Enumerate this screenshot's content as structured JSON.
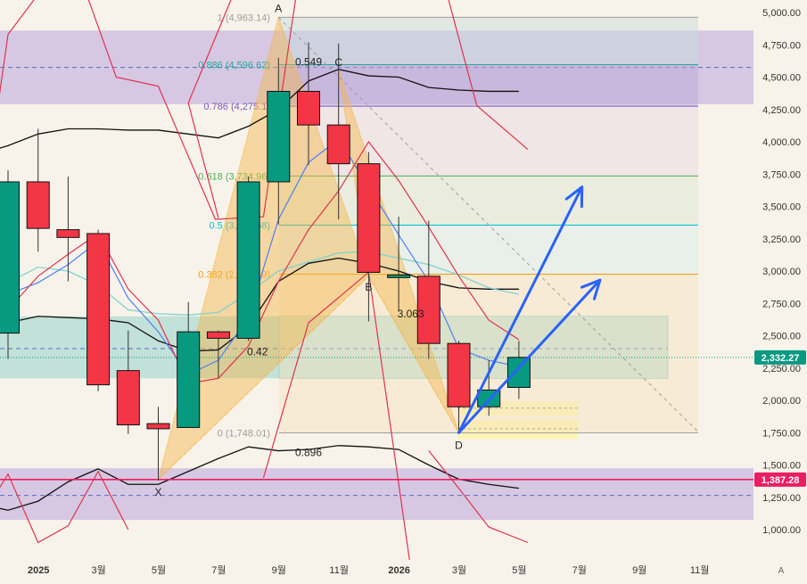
{
  "chart_data": {
    "type": "candlestick",
    "period": "monthly",
    "x_tick_labels": [
      "11월",
      "2025",
      "3월",
      "5월",
      "7월",
      "9월",
      "11월",
      "2026",
      "3월",
      "5월",
      "7월",
      "9월",
      "11월"
    ],
    "y_ticks": [
      1000,
      1250,
      1500,
      1750,
      2000,
      2250,
      2500,
      2750,
      3000,
      3250,
      3500,
      3750,
      4000,
      4250,
      4500,
      4750,
      5000
    ],
    "y_tick_labels": [
      "1,000.00",
      "1,250.00",
      "1,500.00",
      "1,750.00",
      "2,000.00",
      "2,250.00",
      "2,500.00",
      "2,750.00",
      "3,000.00",
      "3,250.00",
      "3,500.00",
      "3,750.00",
      "4,000.00",
      "4,250.00",
      "4,500.00",
      "4,750.00",
      "5,000.00"
    ],
    "ylim": [
      880,
      5100
    ],
    "candles": [
      {
        "x": 0,
        "open": 2520,
        "high": 3780,
        "low": 2320,
        "close": 3690
      },
      {
        "x": 1,
        "open": 3690,
        "high": 4100,
        "low": 3150,
        "close": 3330
      },
      {
        "x": 2,
        "open": 3320,
        "high": 3730,
        "low": 2920,
        "close": 3260
      },
      {
        "x": 3,
        "open": 3290,
        "high": 3320,
        "low": 2070,
        "close": 2120
      },
      {
        "x": 4,
        "open": 2230,
        "high": 2540,
        "low": 1740,
        "close": 1810
      },
      {
        "x": 5,
        "open": 1820,
        "high": 1950,
        "low": 1380,
        "close": 1780
      },
      {
        "x": 6,
        "open": 1790,
        "high": 2760,
        "low": 1790,
        "close": 2530
      },
      {
        "x": 7,
        "open": 2530,
        "high": 2540,
        "low": 2170,
        "close": 2480
      },
      {
        "x": 8,
        "open": 2480,
        "high": 3730,
        "low": 2460,
        "close": 3690
      },
      {
        "x": 9,
        "open": 3690,
        "high": 4650,
        "low": 3360,
        "close": 4390
      },
      {
        "x": 10,
        "open": 4390,
        "high": 4770,
        "low": 3820,
        "close": 4130
      },
      {
        "x": 11,
        "open": 4130,
        "high": 4760,
        "low": 3400,
        "close": 3830
      },
      {
        "x": 12,
        "open": 3830,
        "high": 3920,
        "low": 2610,
        "close": 2990
      },
      {
        "x": 13,
        "open": 2970,
        "high": 3420,
        "low": 2690,
        "close": 2970
      },
      {
        "x": 14,
        "open": 2960,
        "high": 3390,
        "low": 2320,
        "close": 2440
      },
      {
        "x": 15,
        "open": 2440,
        "high": 2460,
        "low": 1760,
        "close": 1950
      },
      {
        "x": 16,
        "open": 1950,
        "high": 2310,
        "low": 1880,
        "close": 2080
      },
      {
        "x": 17,
        "open": 2100,
        "high": 2460,
        "low": 2010,
        "close": 2332.27
      }
    ],
    "fib_levels": [
      {
        "ratio": "1",
        "price": 4963.14,
        "label": "1 (4,963.14)",
        "color": "#9e9e9e"
      },
      {
        "ratio": "0.886",
        "price": 4596.62,
        "label": "0.886 (4,596.62)",
        "color": "#26a69a"
      },
      {
        "ratio": "0.786",
        "price": 4275.1,
        "label": "0.786 (4,275.1)",
        "color": "#7e57c2"
      },
      {
        "ratio": "0.618",
        "price": 3734.96,
        "label": "0.618 (3,734.96)",
        "color": "#4caf50"
      },
      {
        "ratio": "0.5",
        "price": 3355.58,
        "label": "0.5 (3,355.58)",
        "color": "#00bcd4"
      },
      {
        "ratio": "0.382",
        "price": 2976.19,
        "label": "0.382 (2,976.19)",
        "color": "#ff9800"
      },
      {
        "ratio": "0",
        "price": 1748.01,
        "label": "0 (1,748.01)",
        "color": "#9e9e9e"
      }
    ],
    "pattern_points": [
      {
        "label": "X",
        "x": 5,
        "price": 1387
      },
      {
        "label": "A",
        "x": 9,
        "price": 4963
      },
      {
        "label": "B",
        "x": 12,
        "price": 2960
      },
      {
        "label": "C",
        "x": 11,
        "price": 4560
      },
      {
        "label": "D",
        "x": 15,
        "price": 1748
      }
    ],
    "pattern_ratios": [
      {
        "text": "0.42",
        "x": 8.3,
        "price": 2350
      },
      {
        "text": "0.549",
        "x": 10.0,
        "price": 4590
      },
      {
        "text": "3.063",
        "x": 13.4,
        "price": 2640
      },
      {
        "text": "0.896",
        "x": 10.0,
        "price": 1570
      }
    ],
    "zones": [
      {
        "name": "upper-purple",
        "from": 4290,
        "to": 4860,
        "color": "#b39ddb"
      },
      {
        "name": "lower-purple",
        "from": 1075,
        "to": 1475,
        "color": "#b39ddb"
      },
      {
        "name": "teal-box",
        "from": 2170,
        "to": 2650,
        "color": "#80cbc4"
      }
    ],
    "horizontal_lines": [
      {
        "price": 1387.28,
        "label": "1,387.28",
        "color": "#e91e63"
      },
      {
        "price": 2332.27,
        "label": "2,332.27",
        "color": "#089981"
      }
    ],
    "arrows": [
      {
        "from": {
          "x": 15,
          "price": 1750
        },
        "to": {
          "x": 19.1,
          "price": 3650
        }
      },
      {
        "from": {
          "x": 15,
          "price": 1750
        },
        "to": {
          "x": 19.7,
          "price": 2930
        }
      }
    ],
    "bollinger_upper": [
      {
        "x": -1,
        "price": 3200
      },
      {
        "x": 0,
        "price": 4830
      },
      {
        "x": 1,
        "price": 5140
      },
      {
        "x": 2.6,
        "price": 5150
      },
      {
        "x": 3.6,
        "price": 4500
      },
      {
        "x": 5.0,
        "price": 4430
      },
      {
        "x": 6.9,
        "price": 3400
      },
      {
        "x": 8.5,
        "price": 3420
      },
      {
        "x": 9.6,
        "price": 5150
      },
      {
        "x": 14.6,
        "price": 5150
      },
      {
        "x": 15.6,
        "price": 4280
      },
      {
        "x": 17.3,
        "price": 3940
      }
    ],
    "bollinger_middle": [
      {
        "x": -1,
        "price": 3900
      },
      {
        "x": 0,
        "price": 3970
      },
      {
        "x": 1,
        "price": 4060
      },
      {
        "x": 2,
        "price": 4100
      },
      {
        "x": 3,
        "price": 4100
      },
      {
        "x": 4,
        "price": 4090
      },
      {
        "x": 5,
        "price": 4090
      },
      {
        "x": 6,
        "price": 4060
      },
      {
        "x": 7,
        "price": 4030
      },
      {
        "x": 8,
        "price": 4120
      },
      {
        "x": 9,
        "price": 4250
      },
      {
        "x": 10,
        "price": 4470
      },
      {
        "x": 11,
        "price": 4560
      },
      {
        "x": 12,
        "price": 4510
      },
      {
        "x": 13,
        "price": 4500
      },
      {
        "x": 14,
        "price": 4420
      },
      {
        "x": 15,
        "price": 4400
      },
      {
        "x": 16,
        "price": 4390
      },
      {
        "x": 17,
        "price": 4390
      }
    ],
    "bollinger_lower": [
      {
        "x": -1,
        "price": 1200
      },
      {
        "x": 0,
        "price": 1150
      },
      {
        "x": 1,
        "price": 1220
      },
      {
        "x": 2,
        "price": 1370
      },
      {
        "x": 3,
        "price": 1470
      },
      {
        "x": 4,
        "price": 1350
      },
      {
        "x": 5,
        "price": 1350
      },
      {
        "x": 6,
        "price": 1450
      },
      {
        "x": 7,
        "price": 1550
      },
      {
        "x": 8,
        "price": 1640
      },
      {
        "x": 9,
        "price": 1610
      },
      {
        "x": 10,
        "price": 1620
      },
      {
        "x": 11,
        "price": 1650
      },
      {
        "x": 12,
        "price": 1640
      },
      {
        "x": 13,
        "price": 1620
      },
      {
        "x": 14,
        "price": 1500
      },
      {
        "x": 15,
        "price": 1390
      },
      {
        "x": 16,
        "price": 1350
      },
      {
        "x": 17,
        "price": 1320
      }
    ],
    "ma_black": [
      {
        "x": -1,
        "price": 2510
      },
      {
        "x": 0,
        "price": 2600
      },
      {
        "x": 1,
        "price": 2650
      },
      {
        "x": 2,
        "price": 2640
      },
      {
        "x": 3,
        "price": 2630
      },
      {
        "x": 4,
        "price": 2600
      },
      {
        "x": 5,
        "price": 2460
      },
      {
        "x": 6,
        "price": 2380
      },
      {
        "x": 7,
        "price": 2390
      },
      {
        "x": 8,
        "price": 2570
      },
      {
        "x": 9,
        "price": 2920
      },
      {
        "x": 10,
        "price": 3060
      },
      {
        "x": 11,
        "price": 3100
      },
      {
        "x": 12,
        "price": 3060
      },
      {
        "x": 13,
        "price": 3000
      },
      {
        "x": 14,
        "price": 2920
      },
      {
        "x": 15,
        "price": 2870
      },
      {
        "x": 16,
        "price": 2860
      },
      {
        "x": 17,
        "price": 2860
      }
    ],
    "ema_blue": [
      {
        "x": -1,
        "price": 2520
      },
      {
        "x": 0,
        "price": 2820
      },
      {
        "x": 1,
        "price": 2910
      },
      {
        "x": 2,
        "price": 3050
      },
      {
        "x": 3,
        "price": 3230
      },
      {
        "x": 4,
        "price": 2790
      },
      {
        "x": 5,
        "price": 2530
      },
      {
        "x": 6,
        "price": 2200
      },
      {
        "x": 7,
        "price": 2310
      },
      {
        "x": 8,
        "price": 2640
      },
      {
        "x": 9,
        "price": 3400
      },
      {
        "x": 10,
        "price": 3840
      },
      {
        "x": 11,
        "price": 4020
      },
      {
        "x": 12,
        "price": 3650
      },
      {
        "x": 13,
        "price": 3280
      },
      {
        "x": 14,
        "price": 2920
      },
      {
        "x": 15,
        "price": 2400
      },
      {
        "x": 16,
        "price": 2310
      },
      {
        "x": 17,
        "price": 2260
      }
    ],
    "ema_teal": [
      {
        "x": -1,
        "price": 2760
      },
      {
        "x": 0,
        "price": 2910
      },
      {
        "x": 1,
        "price": 3030
      },
      {
        "x": 2,
        "price": 3000
      },
      {
        "x": 3,
        "price": 2890
      },
      {
        "x": 4,
        "price": 2700
      },
      {
        "x": 5,
        "price": 2670
      },
      {
        "x": 6,
        "price": 2660
      },
      {
        "x": 7,
        "price": 2680
      },
      {
        "x": 8,
        "price": 2830
      },
      {
        "x": 9,
        "price": 3000
      },
      {
        "x": 10,
        "price": 3070
      },
      {
        "x": 11,
        "price": 3140
      },
      {
        "x": 12,
        "price": 3150
      },
      {
        "x": 13,
        "price": 3100
      },
      {
        "x": 14,
        "price": 3050
      },
      {
        "x": 15,
        "price": 2970
      },
      {
        "x": 16,
        "price": 2870
      },
      {
        "x": 17,
        "price": 2820
      }
    ],
    "ema_red": [
      {
        "x": -1,
        "price": 2470
      },
      {
        "x": 0,
        "price": 2700
      },
      {
        "x": 1,
        "price": 2960
      },
      {
        "x": 2,
        "price": 3130
      },
      {
        "x": 3,
        "price": 3290
      },
      {
        "x": 4,
        "price": 2860
      },
      {
        "x": 5,
        "price": 2620
      },
      {
        "x": 6,
        "price": 2130
      },
      {
        "x": 7,
        "price": 2170
      },
      {
        "x": 8,
        "price": 2420
      },
      {
        "x": 9,
        "price": 2920
      },
      {
        "x": 10,
        "price": 3320
      },
      {
        "x": 11,
        "price": 3620
      },
      {
        "x": 12,
        "price": 4000
      },
      {
        "x": 13,
        "price": 3700
      },
      {
        "x": 14,
        "price": 3340
      },
      {
        "x": 15,
        "price": 2960
      },
      {
        "x": 16,
        "price": 2620
      },
      {
        "x": 17,
        "price": 2470
      }
    ],
    "bottom_corner_label": "A"
  }
}
